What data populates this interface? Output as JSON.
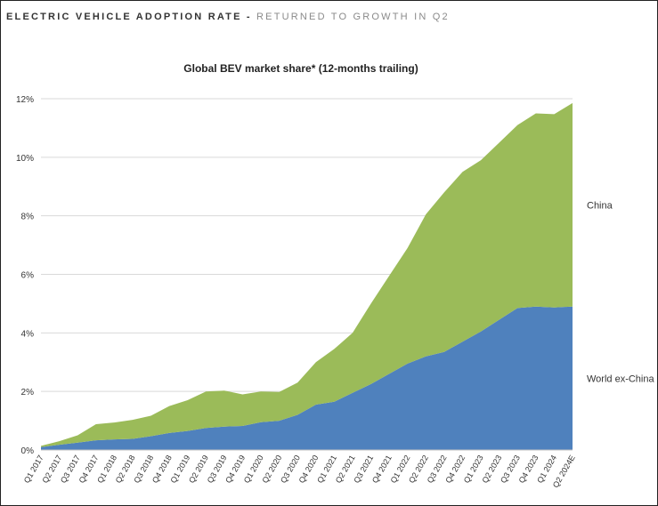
{
  "header": {
    "main": "ELECTRIC VEHICLE ADOPTION RATE",
    "separator": " - ",
    "sub": "RETURNED TO GROWTH IN Q2"
  },
  "chart_data": {
    "type": "area",
    "stacked": true,
    "title": "Global BEV market share* (12-months trailing)",
    "xlabel": "",
    "ylabel": "",
    "ylim": [
      0,
      12
    ],
    "yticks": [
      "0%",
      "2%",
      "4%",
      "6%",
      "8%",
      "10%",
      "12%"
    ],
    "grid": true,
    "legend": "inline-right",
    "categories": [
      "Q1 2017",
      "Q2 2017",
      "Q3 2017",
      "Q4 2017",
      "Q1 2018",
      "Q2 2018",
      "Q3 2018",
      "Q4 2018",
      "Q1 2019",
      "Q2 2019",
      "Q3 2019",
      "Q4 2019",
      "Q1 2020",
      "Q2 2020",
      "Q3 2020",
      "Q4 2020",
      "Q1 2021",
      "Q2 2021",
      "Q3 2021",
      "Q4 2021",
      "Q1 2022",
      "Q2 2022",
      "Q3 2022",
      "Q4 2022",
      "Q1 2023",
      "Q2 2023",
      "Q3 2023",
      "Q4 2023",
      "Q1 2024",
      "Q2 2024E"
    ],
    "series": [
      {
        "name": "World ex-China",
        "color": "#4f81bd",
        "values": [
          0.1,
          0.18,
          0.25,
          0.33,
          0.36,
          0.38,
          0.47,
          0.58,
          0.65,
          0.75,
          0.8,
          0.82,
          0.95,
          1.0,
          1.2,
          1.55,
          1.65,
          1.95,
          2.25,
          2.6,
          2.95,
          3.2,
          3.35,
          3.7,
          4.05,
          4.45,
          4.85,
          4.9,
          4.87,
          4.9
        ]
      },
      {
        "name": "China",
        "color": "#9bbb59",
        "values": [
          0.04,
          0.12,
          0.25,
          0.55,
          0.58,
          0.65,
          0.7,
          0.92,
          1.05,
          1.25,
          1.23,
          1.08,
          1.05,
          0.98,
          1.1,
          1.45,
          1.8,
          2.05,
          2.75,
          3.35,
          3.95,
          4.85,
          5.45,
          5.8,
          5.85,
          6.05,
          6.25,
          6.6,
          6.6,
          6.95
        ]
      }
    ]
  }
}
